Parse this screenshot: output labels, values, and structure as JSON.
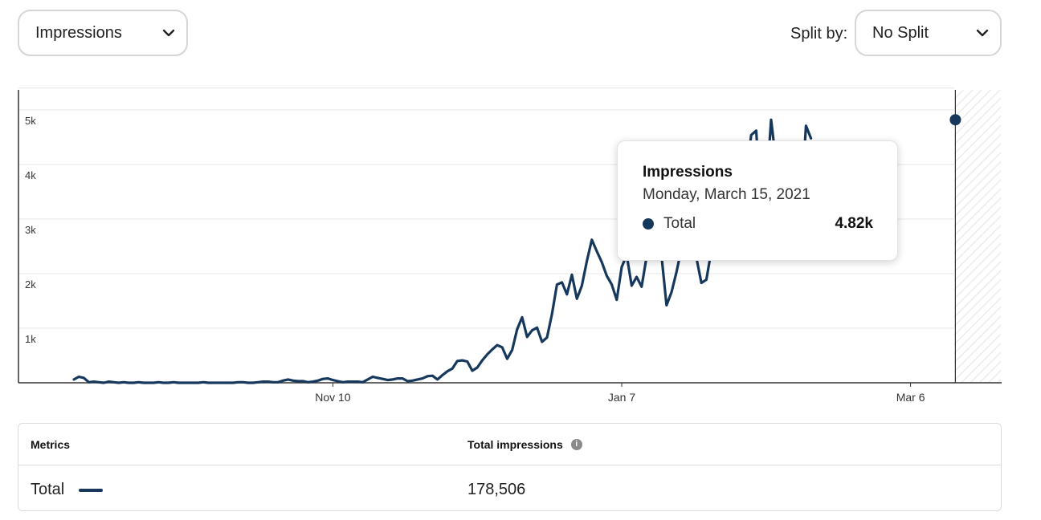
{
  "controls": {
    "metric_dropdown": {
      "value": "Impressions"
    },
    "split_by": {
      "label": "Split by:",
      "value": "No Split"
    }
  },
  "tooltip": {
    "title": "Impressions",
    "date": "Monday, March 15, 2021",
    "series_name": "Total",
    "value": "4.82k"
  },
  "table": {
    "headers": {
      "metrics": "Metrics",
      "total_impressions": "Total impressions",
      "info_icon": "info-icon"
    },
    "row": {
      "label": "Total",
      "value": "178,506"
    }
  },
  "colors": {
    "series": "#16385c",
    "grid": "#e6e6e6",
    "axis": "#333333"
  },
  "chart_data": {
    "type": "line",
    "title": "",
    "xlabel": "",
    "ylabel": "",
    "ylim": [
      0,
      5400
    ],
    "y_ticks": [
      "1k",
      "2k",
      "3k",
      "4k",
      "5k"
    ],
    "y_tick_values": [
      1000,
      2000,
      3000,
      4000,
      5000
    ],
    "x_tick_labels": [
      "Nov 10",
      "Jan 7",
      "Mar 6"
    ],
    "x_start": "2020-09-19",
    "forecast_hatched_after": "2021-03-23",
    "grid": true,
    "highlight": {
      "date": "2021-03-15",
      "value": 4820
    },
    "series": [
      {
        "values": [
          60,
          110,
          90,
          10,
          20,
          10,
          0,
          20,
          10,
          0,
          10,
          0,
          0,
          10,
          0,
          0,
          0,
          10,
          0,
          0,
          10,
          0,
          0,
          0,
          0,
          0,
          10,
          0,
          0,
          0,
          0,
          0,
          0,
          10,
          10,
          0,
          0,
          10,
          20,
          20,
          10,
          10,
          40,
          60,
          40,
          30,
          30,
          10,
          20,
          40,
          70,
          80,
          50,
          30,
          10,
          20,
          20,
          20,
          10,
          60,
          110,
          90,
          70,
          50,
          60,
          80,
          80,
          30,
          40,
          60,
          80,
          120,
          130,
          60,
          140,
          210,
          260,
          400,
          410,
          390,
          220,
          280,
          410,
          520,
          610,
          690,
          650,
          440,
          600,
          980,
          1200,
          840,
          960,
          1010,
          750,
          830,
          1260,
          1800,
          1840,
          1620,
          1980,
          1540,
          1780,
          2230,
          2620,
          2410,
          2210,
          1960,
          1800,
          1520,
          2120,
          2340,
          1780,
          1940,
          1760,
          2310,
          2860,
          2730,
          2320,
          1420,
          1660,
          2030,
          2460,
          2750,
          2680,
          2290,
          1830,
          1890,
          2420,
          2880,
          3170,
          3350,
          3780,
          3960,
          3100,
          3820,
          4540,
          4620,
          3270,
          3490,
          4820,
          4040,
          3600,
          4250,
          3800,
          3100,
          3200,
          4710,
          4480
        ]
      }
    ]
  }
}
